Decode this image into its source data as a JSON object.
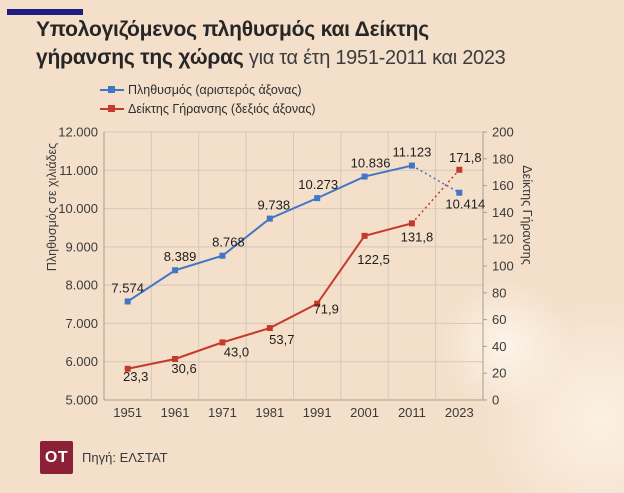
{
  "header": {
    "title_line1": "Υπολογιζόμενος πληθυσμός και Δείκτης",
    "title_line2_bold": "γήρανσης της χώρας",
    "subtitle": " για τα έτη 1951-2011 και 2023"
  },
  "legend": [
    {
      "label": "Πληθυσμός (αριστερός άξονας)",
      "color": "#4176c5"
    },
    {
      "label": "Δείκτης Γήρανσης (δεξιός άξονας)",
      "color": "#c43a2b"
    }
  ],
  "footer": {
    "logo_text": "OT",
    "logo_color": "#8c2136",
    "source": "Πηγή: ΕΛΣΤΑΤ"
  },
  "colors": {
    "background": "#f4dfca",
    "brand_bar": "#201d80",
    "grid": "#d5c8b9",
    "axis": "#ab9c8c",
    "population_series": "#4176c5",
    "aging_series": "#c43a2b"
  },
  "chart_data": {
    "type": "line",
    "title": "Υπολογιζόμενος πληθυσμός και Δείκτης γήρανσης της χώρας για τα έτη 1951-2011 και 2023",
    "categories": [
      "1951",
      "1961",
      "1971",
      "1981",
      "1991",
      "2001",
      "2011",
      "2023"
    ],
    "series": [
      {
        "name": "Πληθυσμός (αριστερός άξονας)",
        "axis": "left",
        "color": "#4176c5",
        "values": [
          7574,
          8389,
          8768,
          9738,
          10273,
          10836,
          11123,
          10414
        ],
        "labels": [
          "7.574",
          "8.389",
          "8.768",
          "9.738",
          "10.273",
          "10.836",
          "11.123",
          "10.414"
        ],
        "label_dx": [
          0,
          5,
          6,
          4,
          1,
          6,
          0,
          6
        ],
        "label_dy": [
          -9,
          -9,
          -9,
          -9,
          -9,
          -9,
          -9,
          16
        ],
        "dashed_from_index": 6
      },
      {
        "name": "Δείκτης Γήρανσης (δεξιός άξονας)",
        "axis": "right",
        "color": "#c43a2b",
        "values": [
          23.3,
          30.6,
          43.0,
          53.7,
          71.9,
          122.5,
          131.8,
          171.8
        ],
        "labels": [
          "23,3",
          "30,6",
          "43,0",
          "53,7",
          "71,9",
          "122,5",
          "131,8",
          "171,8"
        ],
        "label_dx": [
          8,
          9,
          14,
          12,
          9,
          9,
          5,
          6
        ],
        "label_dy": [
          12,
          14,
          14,
          16,
          10,
          28,
          18,
          -8
        ],
        "dashed_from_index": 6
      }
    ],
    "left_axis": {
      "title": "Πληθυσμός σε χιλιάδες",
      "min": 5000,
      "max": 12000,
      "step": 1000,
      "tick_labels": [
        "5.000",
        "6.000",
        "7.000",
        "8.000",
        "9.000",
        "10.000",
        "11.000",
        "12.000"
      ]
    },
    "right_axis": {
      "title": "Δείκτης Γήρανσης",
      "min": 0,
      "max": 200,
      "step": 20,
      "tick_labels": [
        "0",
        "20",
        "40",
        "60",
        "80",
        "100",
        "120",
        "140",
        "160",
        "180",
        "200"
      ]
    },
    "grid": true,
    "legend_position": "top-left",
    "note": "segment 2011→2023 drawn dotted (projection)"
  }
}
